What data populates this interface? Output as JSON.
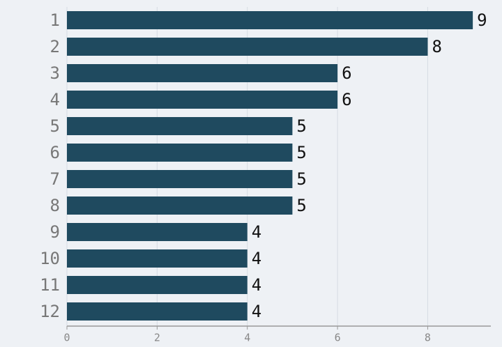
{
  "chart_data": {
    "type": "bar",
    "orientation": "horizontal",
    "categories": [
      "1",
      "2",
      "3",
      "4",
      "5",
      "6",
      "7",
      "8",
      "9",
      "10",
      "11",
      "12"
    ],
    "values": [
      9,
      8,
      6,
      6,
      5,
      5,
      5,
      5,
      4,
      4,
      4,
      4
    ],
    "color": "#1f4a5f",
    "xlim": [
      0,
      9.4
    ],
    "xticks": [
      0,
      2,
      4,
      6,
      8
    ],
    "grid": true
  }
}
